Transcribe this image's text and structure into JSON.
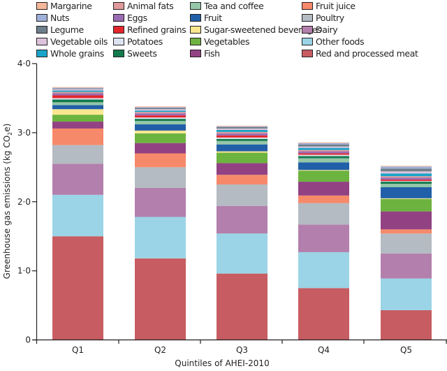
{
  "chart_data": {
    "type": "bar",
    "stacked": true,
    "title": "",
    "xlabel": "Quintiles of AHEI-2010",
    "ylabel": "Greenhouse gas emissions (kg CO₂e)",
    "ylabel_main": "Greenhouse gas emissions (kg CO",
    "ylabel_sub": "2",
    "ylabel_end": "e)",
    "ylim": [
      0,
      4.0
    ],
    "yticks": [
      0,
      1.0,
      2.0,
      3.0,
      4.0
    ],
    "ytick_labels": [
      "0",
      "1·0",
      "2·0",
      "3·0",
      "4·0"
    ],
    "grid": false,
    "legend_position": "top",
    "categories": [
      "Q1",
      "Q2",
      "Q3",
      "Q4",
      "Q5"
    ],
    "series": [
      {
        "name": "Red and processed meat",
        "color": "#c75d62",
        "values": [
          1.5,
          1.18,
          0.96,
          0.75,
          0.43
        ]
      },
      {
        "name": "Other foods",
        "color": "#9bd4e6",
        "values": [
          0.6,
          0.6,
          0.58,
          0.52,
          0.46
        ]
      },
      {
        "name": "Dairy",
        "color": "#b37fac",
        "values": [
          0.45,
          0.42,
          0.4,
          0.4,
          0.36
        ]
      },
      {
        "name": "Poultry",
        "color": "#b4bbc2",
        "values": [
          0.27,
          0.3,
          0.31,
          0.31,
          0.29
        ]
      },
      {
        "name": "Fruit juice",
        "color": "#f5896a",
        "values": [
          0.24,
          0.2,
          0.14,
          0.11,
          0.06
        ]
      },
      {
        "name": "Fish",
        "color": "#924283",
        "values": [
          0.1,
          0.15,
          0.17,
          0.2,
          0.26
        ]
      },
      {
        "name": "Vegetables",
        "color": "#6db33f",
        "values": [
          0.1,
          0.14,
          0.15,
          0.16,
          0.18
        ]
      },
      {
        "name": "Sugar-sweetened beverages",
        "color": "#fbe78f",
        "values": [
          0.08,
          0.04,
          0.02,
          0.01,
          0.01
        ]
      },
      {
        "name": "Fruit",
        "color": "#2160a8",
        "values": [
          0.06,
          0.09,
          0.1,
          0.11,
          0.16
        ]
      },
      {
        "name": "Tea and coffee",
        "color": "#94c6a8",
        "values": [
          0.04,
          0.05,
          0.05,
          0.06,
          0.05
        ]
      },
      {
        "name": "Sweets",
        "color": "#137a4d",
        "values": [
          0.04,
          0.03,
          0.03,
          0.03,
          0.03
        ]
      },
      {
        "name": "Potatoes",
        "color": "#dde3f1",
        "values": [
          0.02,
          0.02,
          0.02,
          0.02,
          0.01
        ]
      },
      {
        "name": "Refined grains",
        "color": "#e3262b",
        "values": [
          0.04,
          0.03,
          0.03,
          0.02,
          0.02
        ]
      },
      {
        "name": "Eggs",
        "color": "#9a6db2",
        "values": [
          0.03,
          0.03,
          0.03,
          0.03,
          0.03
        ]
      },
      {
        "name": "Animal fats",
        "color": "#e09a9c",
        "values": [
          0.02,
          0.02,
          0.02,
          0.02,
          0.02
        ]
      },
      {
        "name": "Whole grains",
        "color": "#1aa4c7",
        "values": [
          0.02,
          0.02,
          0.03,
          0.03,
          0.04
        ]
      },
      {
        "name": "Vegetable oils",
        "color": "#dcc4dd",
        "values": [
          0.02,
          0.02,
          0.02,
          0.02,
          0.03
        ]
      },
      {
        "name": "Legume",
        "color": "#6d7f8a",
        "values": [
          0.01,
          0.02,
          0.02,
          0.03,
          0.04
        ]
      },
      {
        "name": "Nuts",
        "color": "#9fb0d8",
        "values": [
          0.01,
          0.01,
          0.01,
          0.02,
          0.03
        ]
      },
      {
        "name": "Margarine",
        "color": "#f7b79a",
        "values": [
          0.01,
          0.01,
          0.01,
          0.01,
          0.01
        ]
      }
    ],
    "totals_approx": [
      3.67,
      3.38,
      3.14,
      2.92,
      2.55
    ],
    "legend": [
      [
        "Margarine",
        "Animal fats",
        "Tea and coffee",
        "Fruit juice"
      ],
      [
        "Nuts",
        "Eggs",
        "Fruit",
        "Poultry"
      ],
      [
        "Legume",
        "Refined grains",
        "Sugar-sweetened beverages",
        "Dairy"
      ],
      [
        "Vegetable oils",
        "Potatoes",
        "Vegetables",
        "Other foods"
      ],
      [
        "Whole grains",
        "Sweets",
        "Fish",
        "Red and processed meat"
      ]
    ]
  }
}
